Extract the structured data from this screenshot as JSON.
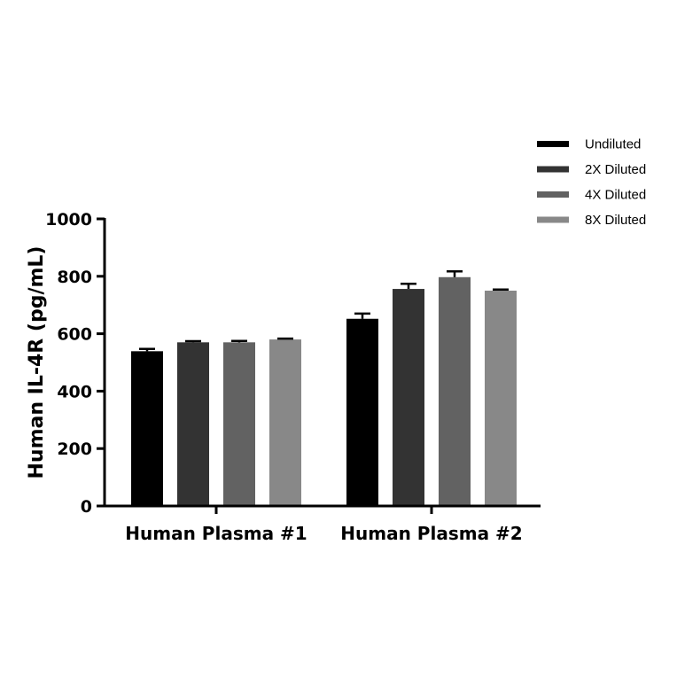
{
  "chart_data": {
    "type": "bar",
    "title": "",
    "xlabel": "",
    "ylabel": "Human IL-4R (pg/mL)",
    "ylim": [
      0,
      1000
    ],
    "yticks": [
      0,
      200,
      400,
      600,
      800,
      1000
    ],
    "categories": [
      "Human Plasma #1",
      "Human Plasma #2"
    ],
    "series": [
      {
        "name": "Undiluted",
        "color": "#000000",
        "values": [
          539,
          652
        ],
        "errors": [
          8,
          18
        ]
      },
      {
        "name": "2X Diluted",
        "color": "#333333",
        "values": [
          570,
          756
        ],
        "errors": [
          4,
          18
        ]
      },
      {
        "name": "4X Diluted",
        "color": "#626262",
        "values": [
          570,
          797
        ],
        "errors": [
          5,
          20
        ]
      },
      {
        "name": "8X Diluted",
        "color": "#888888",
        "values": [
          580,
          750
        ],
        "errors": [
          3,
          4
        ]
      }
    ],
    "legend_position": "top-right",
    "grid": false
  }
}
